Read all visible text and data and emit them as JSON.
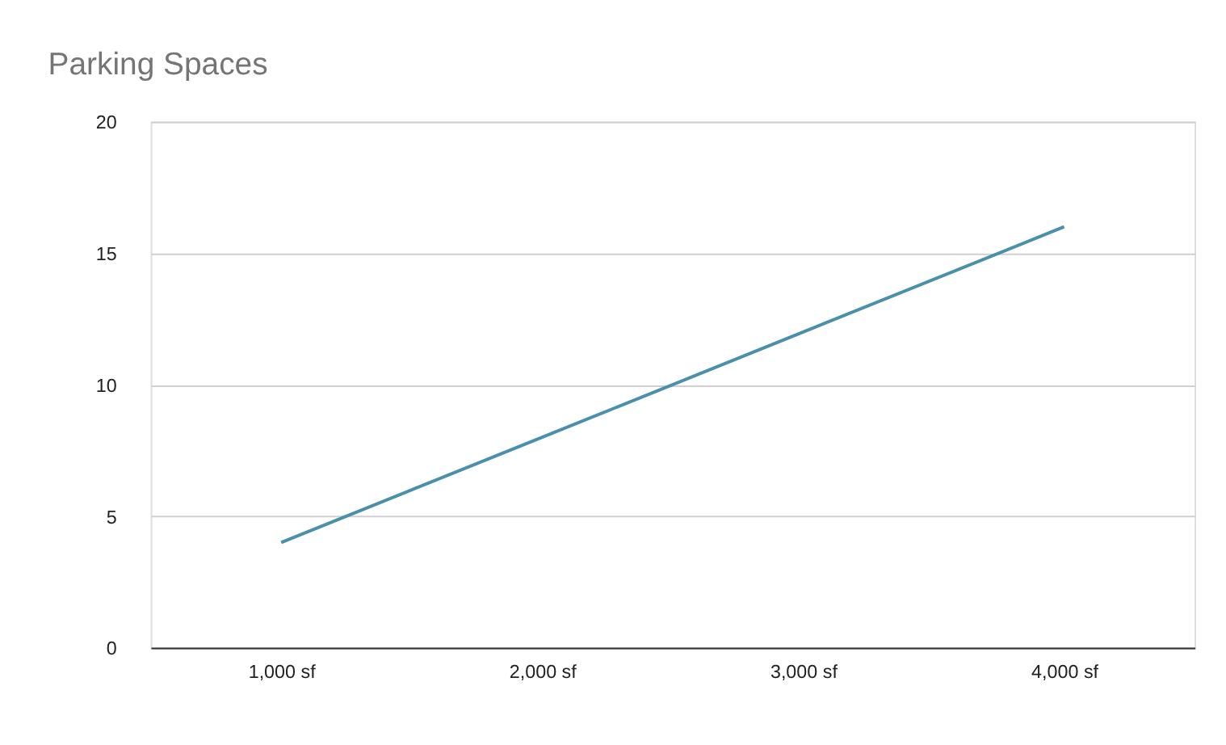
{
  "chart_data": {
    "type": "line",
    "title": "Parking Spaces",
    "categories": [
      "1,000 sf",
      "2,000 sf",
      "3,000 sf",
      "4,000 sf"
    ],
    "series": [
      {
        "color": "#4a8fac",
        "values": [
          4,
          8,
          12,
          16
        ]
      }
    ],
    "ylim": [
      0,
      20
    ],
    "yticks": [
      0,
      5,
      10,
      15,
      20
    ],
    "grid": "y",
    "legend": false,
    "marker": "none",
    "line_style": "solid"
  }
}
